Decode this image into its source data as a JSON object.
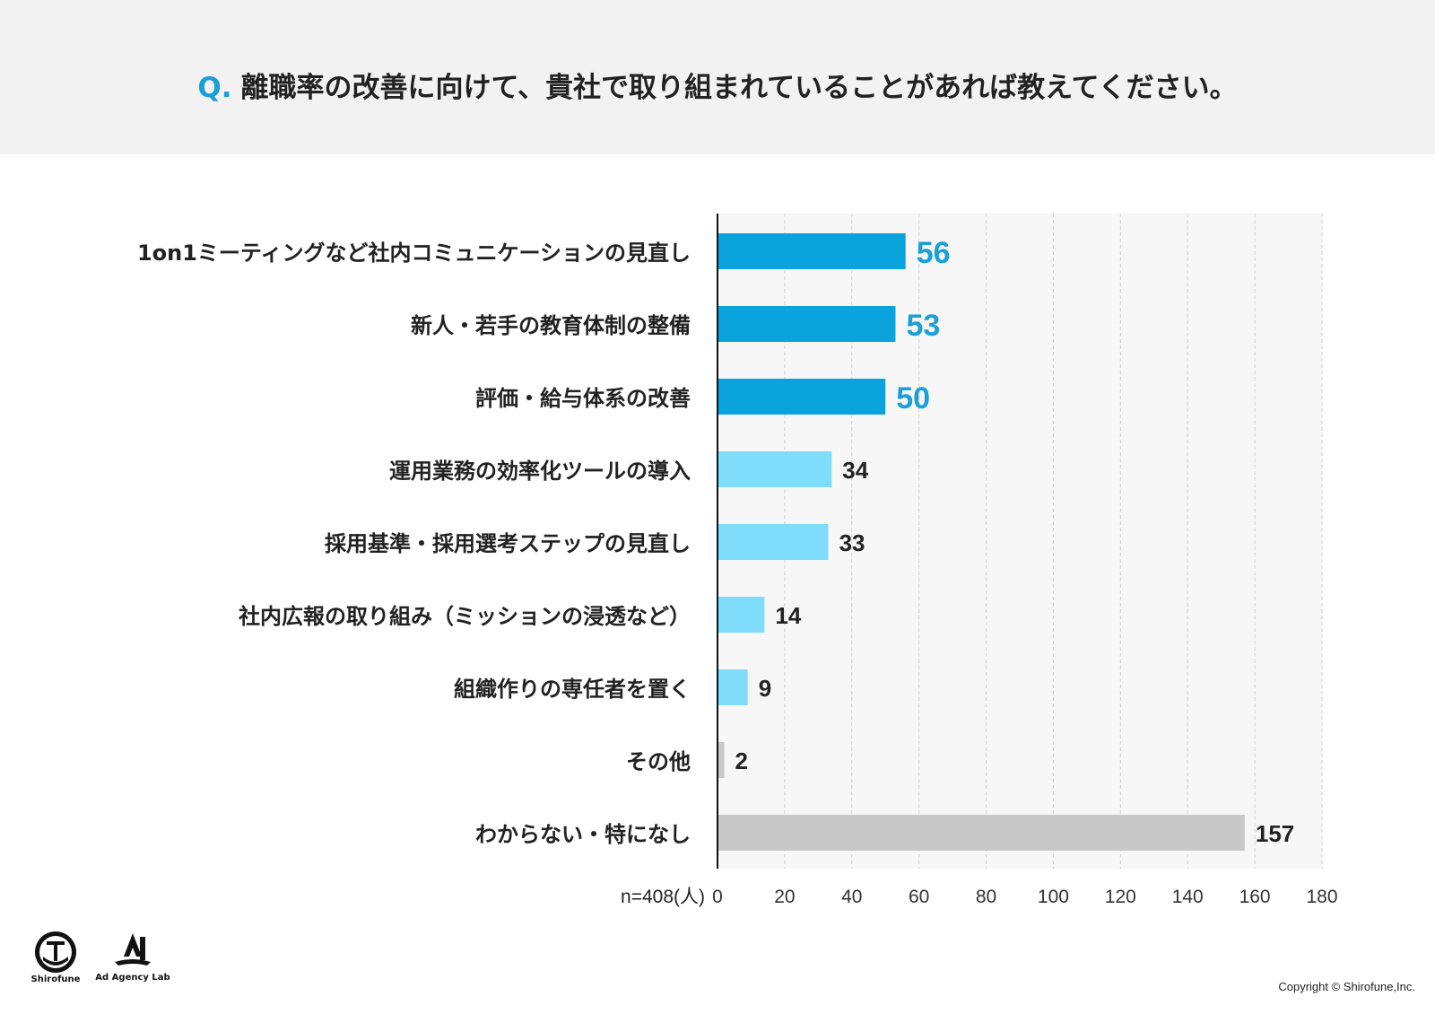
{
  "header": {
    "q_prefix": "Q.",
    "question": "離職率の改善に向けて、貴社で取り組まれていることがあれば教えてください。"
  },
  "chart_data": {
    "type": "bar",
    "orientation": "horizontal",
    "categories": [
      "1on1ミーティングなど社内コミュニケーションの見直し",
      "新人・若手の教育体制の整備",
      "評価・給与体系の改善",
      "運用業務の効率化ツールの導入",
      "採用基準・採用選考ステップの見直し",
      "社内広報の取り組み（ミッションの浸透など）",
      "組織作りの専任者を置く",
      "その他",
      "わからない・特になし"
    ],
    "values": [
      56,
      53,
      50,
      34,
      33,
      14,
      9,
      2,
      157
    ],
    "bar_colors": [
      "#0aa3dc",
      "#0aa3dc",
      "#0aa3dc",
      "#7fdcfb",
      "#7fdcfb",
      "#7fdcfb",
      "#7fdcfb",
      "#c8c8c8",
      "#c8c8c8"
    ],
    "label_colors": [
      "#1a9fd6",
      "#1a9fd6",
      "#1a9fd6",
      "#222222",
      "#222222",
      "#222222",
      "#222222",
      "#222222",
      "#222222"
    ],
    "xlim": [
      0,
      180
    ],
    "xticks": [
      0,
      20,
      40,
      60,
      80,
      100,
      120,
      140,
      160,
      180
    ],
    "sample_label": "n=408(人)",
    "grid": true
  },
  "logos": {
    "shirofune": "Shirofune",
    "adagency": "Ad Agency Lab"
  },
  "footer": {
    "copyright": "Copyright © Shirofune,Inc."
  }
}
